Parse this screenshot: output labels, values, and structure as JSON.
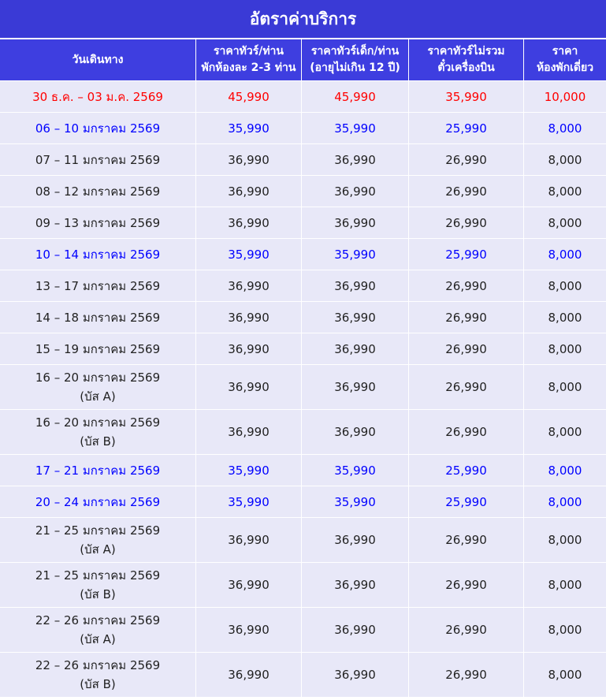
{
  "header": {
    "title": "อัตราค่าบริการ"
  },
  "table": {
    "columns": [
      [
        "วันเดินทาง"
      ],
      [
        "ราคาทัวร์/ท่าน",
        "พักห้องละ 2-3 ท่าน"
      ],
      [
        "ราคาทัวร์เด็ก/ท่าน",
        "(อายุไม่เกิน 12 ปี)"
      ],
      [
        "ราคาทัวร์ไม่รวม",
        "ตั๋วเครื่องบิน"
      ],
      [
        "ราคา",
        "ห้องพักเดี่ยว"
      ]
    ],
    "rows": [
      {
        "date": [
          "30 ธ.ค. – 03 ม.ค. 2569"
        ],
        "prices": [
          "45,990",
          "45,990",
          "35,990",
          "10,000"
        ],
        "color": "#ff0000"
      },
      {
        "date": [
          "06 – 10 มกราคม 2569"
        ],
        "prices": [
          "35,990",
          "35,990",
          "25,990",
          "8,000"
        ],
        "color": "#0000ff"
      },
      {
        "date": [
          "07 – 11 มกราคม 2569"
        ],
        "prices": [
          "36,990",
          "36,990",
          "26,990",
          "8,000"
        ],
        "color": "#222222"
      },
      {
        "date": [
          "08 – 12 มกราคม 2569"
        ],
        "prices": [
          "36,990",
          "36,990",
          "26,990",
          "8,000"
        ],
        "color": "#222222"
      },
      {
        "date": [
          "09 – 13 มกราคม 2569"
        ],
        "prices": [
          "36,990",
          "36,990",
          "26,990",
          "8,000"
        ],
        "color": "#222222"
      },
      {
        "date": [
          "10 – 14 มกราคม 2569"
        ],
        "prices": [
          "35,990",
          "35,990",
          "25,990",
          "8,000"
        ],
        "color": "#0000ff"
      },
      {
        "date": [
          "13 – 17 มกราคม 2569"
        ],
        "prices": [
          "36,990",
          "36,990",
          "26,990",
          "8,000"
        ],
        "color": "#222222"
      },
      {
        "date": [
          "14 – 18 มกราคม 2569"
        ],
        "prices": [
          "36,990",
          "36,990",
          "26,990",
          "8,000"
        ],
        "color": "#222222"
      },
      {
        "date": [
          "15 – 19 มกราคม 2569"
        ],
        "prices": [
          "36,990",
          "36,990",
          "26,990",
          "8,000"
        ],
        "color": "#222222"
      },
      {
        "date": [
          "16 – 20 มกราคม 2569",
          "(บัส A)"
        ],
        "prices": [
          "36,990",
          "36,990",
          "26,990",
          "8,000"
        ],
        "color": "#222222"
      },
      {
        "date": [
          "16 – 20 มกราคม 2569",
          "(บัส B)"
        ],
        "prices": [
          "36,990",
          "36,990",
          "26,990",
          "8,000"
        ],
        "color": "#222222"
      },
      {
        "date": [
          "17 – 21 มกราคม 2569"
        ],
        "prices": [
          "35,990",
          "35,990",
          "25,990",
          "8,000"
        ],
        "color": "#0000ff"
      },
      {
        "date": [
          "20 – 24 มกราคม 2569"
        ],
        "prices": [
          "35,990",
          "35,990",
          "25,990",
          "8,000"
        ],
        "color": "#0000ff"
      },
      {
        "date": [
          "21 – 25 มกราคม 2569",
          "(บัส A)"
        ],
        "prices": [
          "36,990",
          "36,990",
          "26,990",
          "8,000"
        ],
        "color": "#222222"
      },
      {
        "date": [
          "21 – 25 มกราคม 2569",
          "(บัส B)"
        ],
        "prices": [
          "36,990",
          "36,990",
          "26,990",
          "8,000"
        ],
        "color": "#222222"
      },
      {
        "date": [
          "22 – 26 มกราคม 2569",
          "(บัส A)"
        ],
        "prices": [
          "36,990",
          "36,990",
          "26,990",
          "8,000"
        ],
        "color": "#222222"
      },
      {
        "date": [
          "22 – 26 มกราคม 2569",
          "(บัส B)"
        ],
        "prices": [
          "36,990",
          "36,990",
          "26,990",
          "8,000"
        ],
        "color": "#222222"
      }
    ]
  }
}
